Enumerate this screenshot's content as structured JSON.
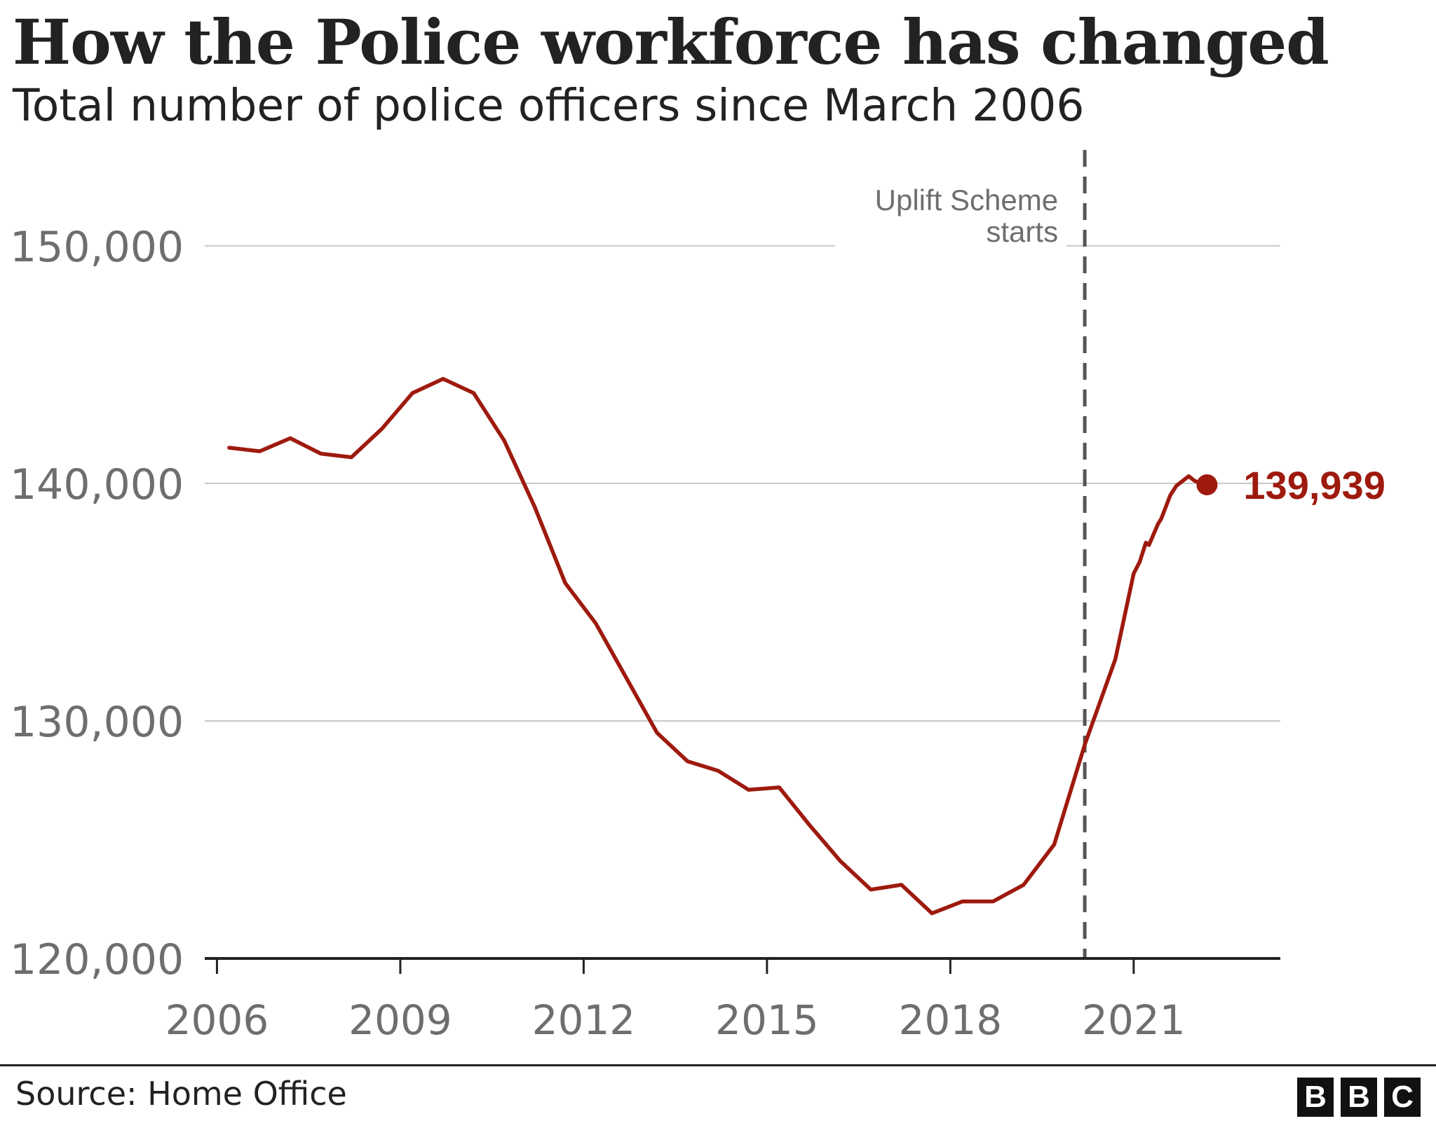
{
  "header": {
    "title": "How the Police workforce has changed",
    "subtitle": "Total number of police officers since March 2006"
  },
  "footer": {
    "source": "Source: Home Office",
    "logo_letters": [
      "B",
      "B",
      "C"
    ]
  },
  "colors": {
    "line": "#9e1a0e",
    "grid": "#c8c8c8",
    "axis": "#222222",
    "tick_label": "#6e6e6e",
    "annotation_line": "#555555"
  },
  "chart_data": {
    "type": "line",
    "title": "How the Police workforce has changed",
    "subtitle": "Total number of police officers since March 2006",
    "xlabel": "",
    "ylabel": "",
    "xlim": [
      2005.8,
      2023.4
    ],
    "ylim": [
      120000,
      152000
    ],
    "y_ticks": [
      120000,
      130000,
      140000,
      150000
    ],
    "y_tick_labels": [
      "120,000",
      "130,000",
      "140,000",
      "150,000"
    ],
    "x_ticks": [
      2006,
      2009,
      2012,
      2015,
      2018,
      2021
    ],
    "x_tick_labels": [
      "2006",
      "2009",
      "2012",
      "2015",
      "2018",
      "2021"
    ],
    "grid": true,
    "series": [
      {
        "name": "Police officers",
        "x": [
          2006.2,
          2006.7,
          2007.2,
          2007.7,
          2008.2,
          2008.7,
          2009.2,
          2009.7,
          2010.2,
          2010.7,
          2011.2,
          2011.7,
          2012.2,
          2012.7,
          2013.2,
          2013.7,
          2014.2,
          2014.7,
          2015.2,
          2015.7,
          2016.2,
          2016.7,
          2017.2,
          2017.7,
          2018.2,
          2018.7,
          2019.2,
          2019.7,
          2020.2,
          2020.7,
          2021.0,
          2021.1,
          2021.2,
          2021.25,
          2021.4,
          2021.45,
          2021.6,
          2021.7,
          2021.9,
          2022.0,
          2022.2
        ],
        "values": [
          141500,
          141350,
          141900,
          141250,
          141100,
          142300,
          143800,
          144400,
          143800,
          141800,
          139000,
          135800,
          134100,
          131800,
          129500,
          128300,
          127900,
          127100,
          127200,
          125600,
          124100,
          122900,
          123100,
          121900,
          122400,
          122400,
          123100,
          124800,
          129000,
          132600,
          136200,
          136700,
          137500,
          137400,
          138300,
          138500,
          139500,
          139900,
          140300,
          140100,
          139939
        ]
      }
    ],
    "end_label": "139,939",
    "annotations": [
      {
        "type": "vline",
        "x": 2020.2,
        "label_lines": [
          "Uplift Scheme",
          "starts"
        ]
      }
    ]
  }
}
